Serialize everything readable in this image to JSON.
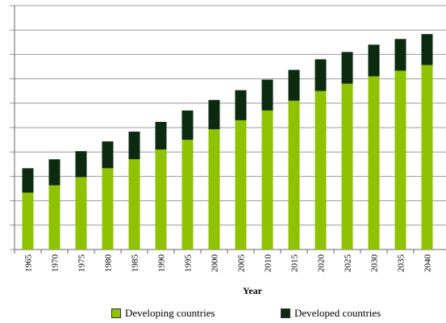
{
  "chart_data": {
    "type": "bar",
    "stacked": true,
    "title": "",
    "xlabel": "Year",
    "ylabel": "",
    "categories": [
      "1965",
      "1970",
      "1975",
      "1980",
      "1985",
      "1990",
      "1995",
      "2000",
      "2005",
      "2010",
      "2015",
      "2020",
      "2025",
      "2030",
      "2035",
      "2040"
    ],
    "ylim": [
      0,
      300
    ],
    "grid": true,
    "legend_position": "bottom",
    "series": [
      {
        "name": "Developing countries",
        "color": "#8fc300",
        "values": [
          70,
          79,
          89,
          100,
          111,
          123,
          135,
          148,
          159,
          171,
          183,
          195,
          204,
          213,
          220,
          227
        ]
      },
      {
        "name": "Developed countries",
        "color": "#0b2a10",
        "values": [
          30,
          32,
          32,
          33,
          34,
          34,
          36,
          36,
          37,
          38,
          38,
          39,
          39,
          39,
          39,
          38
        ]
      }
    ]
  }
}
